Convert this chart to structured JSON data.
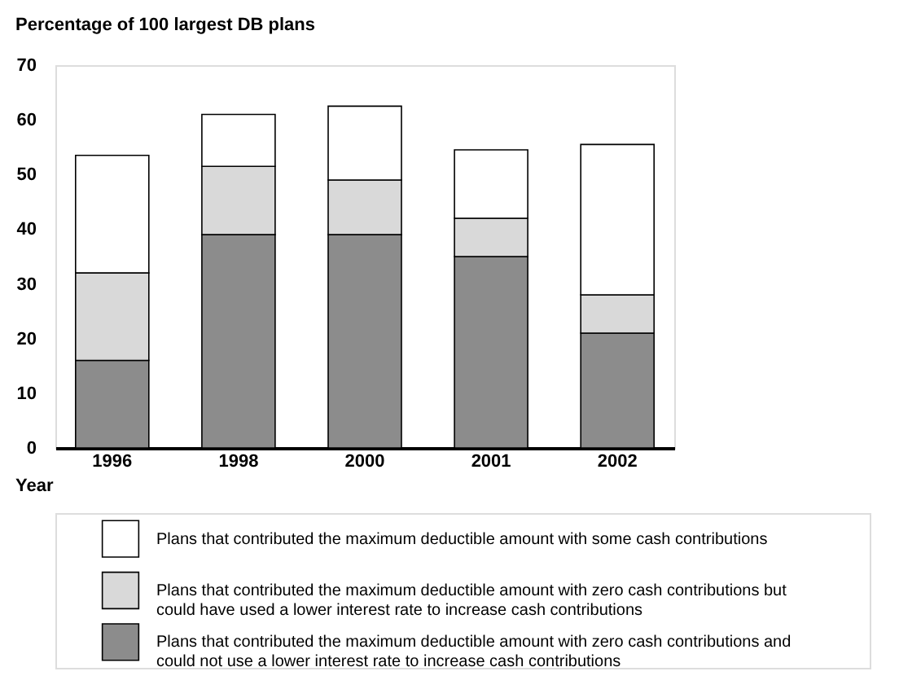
{
  "chart_data": {
    "type": "bar",
    "stacked": true,
    "ylabel": "Percentage of 100 largest DB plans",
    "xlabel": "Year",
    "categories": [
      "1996",
      "1998",
      "2000",
      "2001",
      "2002"
    ],
    "ylim": [
      0,
      70
    ],
    "yticks": [
      0,
      10,
      20,
      30,
      40,
      50,
      60,
      70
    ],
    "grid": false,
    "legend": "bottom",
    "series": [
      {
        "name": "Plans that contributed the maximum deductible amount with zero cash contributions and could not use a lower interest rate to increase cash contributions",
        "color": "#8c8c8c",
        "values": [
          16,
          39,
          39,
          35,
          21
        ]
      },
      {
        "name": "Plans that contributed the maximum deductible amount with zero cash contributions but could have used a lower interest rate to increase cash contributions",
        "color": "#d9d9d9",
        "values": [
          16,
          12.5,
          10,
          7,
          7
        ]
      },
      {
        "name": "Plans that contributed the maximum deductible amount with some cash contributions",
        "color": "#ffffff",
        "values": [
          21.5,
          9.5,
          13.5,
          12.5,
          27.5
        ]
      }
    ]
  }
}
